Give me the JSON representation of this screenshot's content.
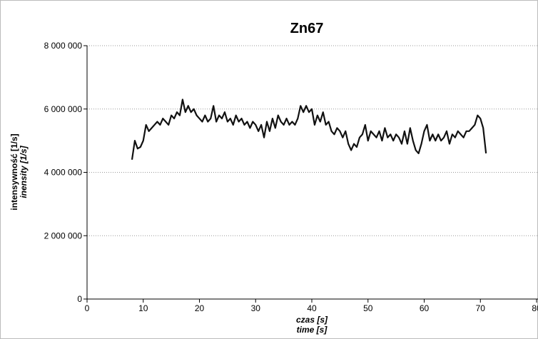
{
  "chart_data": {
    "type": "line",
    "title": "Zn67",
    "ylabel": [
      "intensywność [1/s]",
      "inensity [1/s]"
    ],
    "xlabel": [
      "czas [s]",
      "time [s]"
    ],
    "xlim": [
      0,
      80
    ],
    "xticks": [
      0,
      10,
      20,
      30,
      40,
      50,
      60,
      70,
      80
    ],
    "ylim": [
      0,
      8000000
    ],
    "yticks": [
      {
        "value": 0,
        "label": "0"
      },
      {
        "value": 2000000,
        "label": "2 000 000"
      },
      {
        "value": 4000000,
        "label": "4 000 000"
      },
      {
        "value": 6000000,
        "label": "6 000 000"
      },
      {
        "value": 8000000,
        "label": "8 000 000"
      }
    ],
    "grid": true,
    "color": "#111111",
    "x": [
      8,
      8.5,
      9,
      9.5,
      10,
      10.5,
      11,
      11.5,
      12,
      12.5,
      13,
      13.5,
      14,
      14.5,
      15,
      15.5,
      16,
      16.5,
      17,
      17.5,
      18,
      18.5,
      19,
      19.5,
      20,
      20.5,
      21,
      21.5,
      22,
      22.5,
      23,
      23.5,
      24,
      24.5,
      25,
      25.5,
      26,
      26.5,
      27,
      27.5,
      28,
      28.5,
      29,
      29.5,
      30,
      30.5,
      31,
      31.5,
      32,
      32.5,
      33,
      33.5,
      34,
      34.5,
      35,
      35.5,
      36,
      36.5,
      37,
      37.5,
      38,
      38.5,
      39,
      39.5,
      40,
      40.5,
      41,
      41.5,
      42,
      42.5,
      43,
      43.5,
      44,
      44.5,
      45,
      45.5,
      46,
      46.5,
      47,
      47.5,
      48,
      48.5,
      49,
      49.5,
      50,
      50.5,
      51,
      51.5,
      52,
      52.5,
      53,
      53.5,
      54,
      54.5,
      55,
      55.5,
      56,
      56.5,
      57,
      57.5,
      58,
      58.5,
      59,
      59.5,
      60,
      60.5,
      61,
      61.5,
      62,
      62.5,
      63,
      63.5,
      64,
      64.5,
      65,
      65.5,
      66,
      66.5,
      67,
      67.5,
      68,
      68.5,
      69,
      69.5,
      70,
      70.5,
      71
    ],
    "values": [
      4400000,
      5000000,
      4750000,
      4800000,
      5000000,
      5500000,
      5300000,
      5400000,
      5500000,
      5600000,
      5500000,
      5700000,
      5600000,
      5500000,
      5800000,
      5700000,
      5900000,
      5800000,
      6300000,
      5900000,
      6100000,
      5900000,
      6000000,
      5800000,
      5700000,
      5600000,
      5800000,
      5600000,
      5700000,
      6100000,
      5600000,
      5800000,
      5700000,
      5900000,
      5600000,
      5700000,
      5500000,
      5800000,
      5600000,
      5700000,
      5500000,
      5600000,
      5400000,
      5600000,
      5500000,
      5300000,
      5500000,
      5100000,
      5600000,
      5300000,
      5700000,
      5400000,
      5800000,
      5600000,
      5500000,
      5700000,
      5500000,
      5600000,
      5500000,
      5700000,
      6100000,
      5900000,
      6100000,
      5900000,
      6000000,
      5500000,
      5800000,
      5600000,
      5900000,
      5500000,
      5600000,
      5300000,
      5200000,
      5400000,
      5300000,
      5100000,
      5300000,
      4900000,
      4700000,
      4900000,
      4800000,
      5100000,
      5200000,
      5500000,
      5000000,
      5300000,
      5200000,
      5100000,
      5300000,
      5000000,
      5400000,
      5100000,
      5200000,
      5000000,
      5200000,
      5100000,
      4900000,
      5300000,
      4900000,
      5400000,
      5000000,
      4700000,
      4600000,
      4900000,
      5300000,
      5500000,
      5000000,
      5200000,
      5000000,
      5200000,
      5000000,
      5100000,
      5300000,
      4900000,
      5200000,
      5100000,
      5300000,
      5200000,
      5100000,
      5300000,
      5300000,
      5400000,
      5500000,
      5800000,
      5700000,
      5400000,
      4600000
    ]
  }
}
